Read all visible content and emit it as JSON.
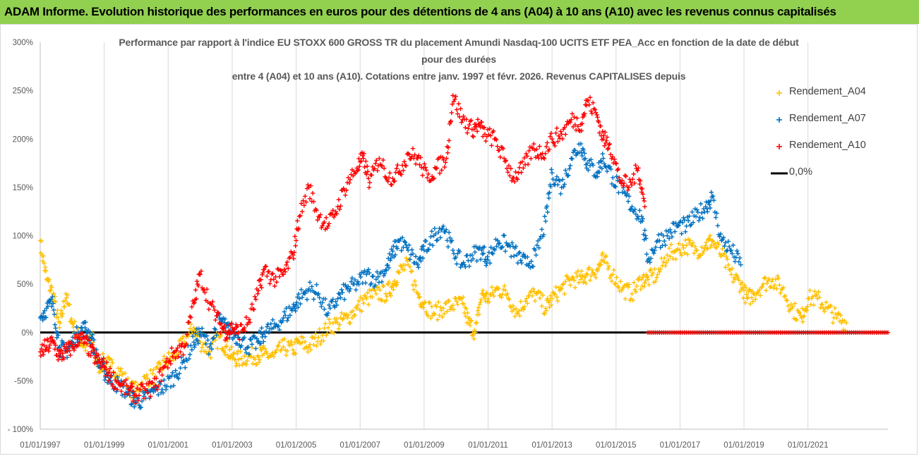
{
  "banner": "ADAM Informe. Evolution historique des performances en euros pour des détentions de 4 ans (A04) à 10 ans (A10) avec les revenus connus capitalisés",
  "chart_data": {
    "type": "scatter",
    "title_lines": [
      "Performance par rapport à l'indice EU STOXX 600 GROSS TR  du placement Amundi Nasdaq-100 UCITS ETF PEA_Acc en fonction de la date de début",
      "pour des durées",
      "entre 4 (A04) et 10 ans (A10). Cotations entre janv. 1997 et févr. 2026. Revenus CAPITALISES depuis"
    ],
    "x_range": [
      1997.0,
      2023.5
    ],
    "y_range": [
      -100,
      300
    ],
    "y_ticks": [
      {
        "value": 300,
        "label": "300%"
      },
      {
        "value": 250,
        "label": "250%"
      },
      {
        "value": 200,
        "label": "200%"
      },
      {
        "value": 150,
        "label": "150%"
      },
      {
        "value": 100,
        "label": "100%"
      },
      {
        "value": 50,
        "label": "50%"
      },
      {
        "value": 0,
        "label": "0%"
      },
      {
        "value": -50,
        "label": "-50%"
      },
      {
        "value": -100,
        "label": "- 100%"
      }
    ],
    "x_ticks": [
      {
        "value": 1997,
        "label": "01/01/1997"
      },
      {
        "value": 1999,
        "label": "01/01/1999"
      },
      {
        "value": 2001,
        "label": "01/01/2001"
      },
      {
        "value": 2003,
        "label": "01/01/2003"
      },
      {
        "value": 2005,
        "label": "01/01/2005"
      },
      {
        "value": 2007,
        "label": "01/01/2007"
      },
      {
        "value": 2009,
        "label": "01/01/2009"
      },
      {
        "value": 2011,
        "label": "01/01/2011"
      },
      {
        "value": 2013,
        "label": "01/01/2013"
      },
      {
        "value": 2015,
        "label": "01/01/2015"
      },
      {
        "value": 2017,
        "label": "01/01/2017"
      },
      {
        "value": 2019,
        "label": "01/01/2019"
      },
      {
        "value": 2021,
        "label": "01/01/2021"
      }
    ],
    "grid": "vertical",
    "legend_position": "right",
    "series": [
      {
        "name": "Rendement_A04",
        "color": "#ffc000",
        "marker": "+",
        "x": [
          1997.0,
          1997.2,
          1997.4,
          1997.6,
          1997.8,
          1998.0,
          1998.2,
          1998.4,
          1998.6,
          1998.8,
          1999.0,
          1999.2,
          1999.5,
          1999.8,
          2000.0,
          2000.3,
          2000.6,
          2000.9,
          2001.2,
          2001.5,
          2001.8,
          2002.0,
          2002.3,
          2002.6,
          2002.8,
          2003.0,
          2003.2,
          2003.5,
          2003.8,
          2004.0,
          2004.3,
          2004.6,
          2004.9,
          2005.1,
          2005.4,
          2005.7,
          2006.0,
          2006.3,
          2006.6,
          2006.9,
          2007.2,
          2007.5,
          2007.8,
          2008.0,
          2008.2,
          2008.5,
          2008.8,
          2009.0,
          2009.3,
          2009.6,
          2009.9,
          2010.2,
          2010.4,
          2010.6,
          2010.8,
          2011.0,
          2011.3,
          2011.6,
          2011.9,
          2012.2,
          2012.5,
          2012.8,
          2013.0,
          2013.3,
          2013.6,
          2013.9,
          2014.1,
          2014.4,
          2014.6,
          2014.9,
          2015.2,
          2015.5,
          2015.8,
          2016.0,
          2016.3,
          2016.6,
          2016.9,
          2017.2,
          2017.5,
          2017.8,
          2018.0,
          2018.3,
          2018.6,
          2018.9,
          2019.1,
          2019.3,
          2019.6,
          2019.9,
          2020.2,
          2020.5,
          2020.8,
          2021.0,
          2021.3,
          2021.6,
          2021.9,
          2022.2
        ],
        "y": [
          95,
          55,
          40,
          5,
          40,
          10,
          -5,
          -15,
          -5,
          -35,
          -30,
          -35,
          -40,
          -58,
          -60,
          -48,
          -45,
          -30,
          -25,
          -10,
          5,
          -10,
          -20,
          -5,
          -15,
          -25,
          -28,
          -25,
          -24,
          -22,
          -25,
          -15,
          -18,
          -10,
          -15,
          -5,
          5,
          10,
          15,
          25,
          35,
          40,
          40,
          48,
          62,
          70,
          40,
          30,
          20,
          25,
          28,
          30,
          10,
          0,
          40,
          35,
          45,
          40,
          20,
          35,
          40,
          25,
          35,
          45,
          55,
          55,
          60,
          65,
          75,
          60,
          45,
          40,
          55,
          55,
          60,
          80,
          85,
          90,
          85,
          90,
          95,
          80,
          60,
          50,
          35,
          40,
          50,
          55,
          45,
          25,
          15,
          35,
          35,
          25,
          15,
          10
        ]
      },
      {
        "name": "Rendement_A07",
        "color": "#0070c0",
        "marker": "+",
        "x": [
          1997.0,
          1997.2,
          1997.4,
          1997.6,
          1997.8,
          1998.0,
          1998.2,
          1998.4,
          1998.6,
          1998.8,
          1999.0,
          1999.2,
          1999.5,
          1999.8,
          2000.0,
          2000.3,
          2000.6,
          2000.9,
          2001.2,
          2001.5,
          2001.8,
          2002.0,
          2002.3,
          2002.6,
          2002.8,
          2003.0,
          2003.2,
          2003.5,
          2003.8,
          2004.0,
          2004.3,
          2004.6,
          2004.9,
          2005.1,
          2005.4,
          2005.7,
          2006.0,
          2006.3,
          2006.6,
          2006.9,
          2007.2,
          2007.5,
          2007.8,
          2008.0,
          2008.2,
          2008.5,
          2008.8,
          2009.0,
          2009.3,
          2009.6,
          2009.9,
          2010.2,
          2010.5,
          2010.8,
          2011.0,
          2011.3,
          2011.6,
          2011.9,
          2012.2,
          2012.5,
          2012.8,
          2013.0,
          2013.3,
          2013.6,
          2013.9,
          2014.1,
          2014.4,
          2014.6,
          2014.9,
          2015.2,
          2015.5,
          2015.8,
          2016.0,
          2016.3,
          2016.6,
          2016.9,
          2017.2,
          2017.5,
          2017.8,
          2018.0,
          2018.3,
          2018.6,
          2018.9
        ],
        "y": [
          15,
          25,
          30,
          -15,
          -20,
          -10,
          0,
          5,
          -5,
          -30,
          -40,
          -50,
          -55,
          -65,
          -72,
          -68,
          -60,
          -55,
          -45,
          -30,
          -10,
          0,
          -15,
          15,
          5,
          0,
          -5,
          -15,
          -10,
          0,
          5,
          15,
          25,
          35,
          45,
          40,
          20,
          35,
          45,
          50,
          60,
          55,
          65,
          80,
          95,
          85,
          70,
          85,
          100,
          110,
          85,
          70,
          80,
          85,
          75,
          95,
          90,
          80,
          70,
          80,
          115,
          165,
          150,
          180,
          195,
          175,
          165,
          180,
          160,
          145,
          130,
          120,
          75,
          95,
          100,
          110,
          110,
          120,
          130,
          140,
          95,
          85,
          70
        ]
      },
      {
        "name": "Rendement_A10",
        "color": "#ff0000",
        "marker": "+",
        "x": [
          1997.0,
          1997.2,
          1997.4,
          1997.6,
          1997.8,
          1998.0,
          1998.2,
          1998.4,
          1998.6,
          1998.8,
          1999.0,
          1999.2,
          1999.5,
          1999.8,
          2000.0,
          2000.3,
          2000.6,
          2000.9,
          2001.2,
          2001.5,
          2001.8,
          2002.0,
          2002.3,
          2002.6,
          2002.8,
          2003.0,
          2003.2,
          2003.5,
          2003.8,
          2004.0,
          2004.3,
          2004.6,
          2004.9,
          2005.1,
          2005.4,
          2005.7,
          2006.0,
          2006.3,
          2006.6,
          2006.9,
          2007.1,
          2007.3,
          2007.6,
          2007.9,
          2008.2,
          2008.5,
          2008.8,
          2009.1,
          2009.4,
          2009.7,
          2009.9,
          2010.2,
          2010.5,
          2010.7,
          2010.9,
          2011.2,
          2011.5,
          2011.8,
          2012.1,
          2012.4,
          2012.7,
          2013.0,
          2013.3,
          2013.6,
          2013.9,
          2014.1,
          2014.4,
          2014.6,
          2014.8,
          2015.1,
          2015.4,
          2015.7,
          2015.9
        ],
        "y": [
          -20,
          -15,
          -10,
          -25,
          -20,
          -15,
          -5,
          -10,
          -20,
          -30,
          -35,
          -45,
          -55,
          -60,
          -65,
          -60,
          -55,
          -35,
          -20,
          -15,
          30,
          60,
          30,
          10,
          0,
          5,
          0,
          10,
          40,
          65,
          55,
          60,
          80,
          120,
          150,
          120,
          110,
          130,
          155,
          170,
          180,
          155,
          180,
          160,
          165,
          185,
          180,
          160,
          170,
          180,
          245,
          220,
          210,
          215,
          205,
          200,
          180,
          160,
          170,
          190,
          185,
          200,
          205,
          220,
          215,
          240,
          225,
          200,
          195,
          160,
          150,
          170,
          130
        ]
      },
      {
        "name": "0,0%",
        "color": "#000000",
        "marker": "line",
        "x": [
          1997.0,
          2023.5
        ],
        "y": [
          0,
          0
        ]
      }
    ],
    "flat_red_segment": {
      "x_start": 2016.0,
      "x_end": 2023.5,
      "y": 0
    }
  }
}
